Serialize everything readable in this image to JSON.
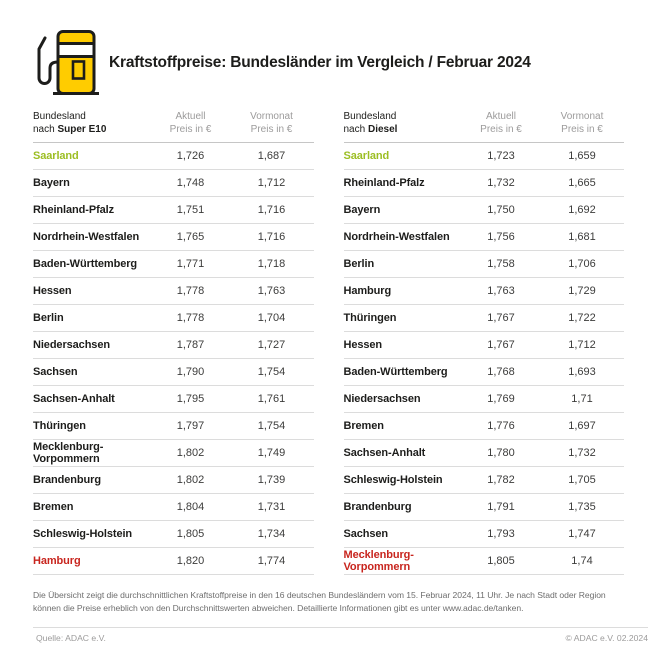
{
  "header": {
    "title": "Kraftstoffpreise: Bundesländer im Vergleich / Februar 2024",
    "icon": "fuel-pump-icon"
  },
  "colors": {
    "brand_yellow": "#FFCC00",
    "title_black": "#1D1D1B",
    "header_gray": "#9C9B9B",
    "value_gray": "#3C3C3B",
    "cheapest_green": "#9CBE23",
    "most_expensive_red": "#C8251E",
    "divider_gray": "#DCDCDC"
  },
  "chart_data": [
    {
      "type": "table",
      "fuel": "Super E10",
      "header": {
        "col1_line1": "Bundesland",
        "col1_line2_prefix": "nach ",
        "col1_line2_bold": "Super E10",
        "col2_line1": "Aktuell",
        "col2_line2": "Preis in €",
        "col3_line1": "Vormonat",
        "col3_line2": "Preis in €"
      },
      "rows": [
        {
          "state": "Saarland",
          "aktuell": "1,726",
          "vormonat": "1,687",
          "highlight": "cheapest"
        },
        {
          "state": "Bayern",
          "aktuell": "1,748",
          "vormonat": "1,712",
          "highlight": null
        },
        {
          "state": "Rheinland-Pfalz",
          "aktuell": "1,751",
          "vormonat": "1,716",
          "highlight": null
        },
        {
          "state": "Nordrhein-Westfalen",
          "aktuell": "1,765",
          "vormonat": "1,716",
          "highlight": null
        },
        {
          "state": "Baden-Württemberg",
          "aktuell": "1,771",
          "vormonat": "1,718",
          "highlight": null
        },
        {
          "state": "Hessen",
          "aktuell": "1,778",
          "vormonat": "1,763",
          "highlight": null
        },
        {
          "state": "Berlin",
          "aktuell": "1,778",
          "vormonat": "1,704",
          "highlight": null
        },
        {
          "state": "Niedersachsen",
          "aktuell": "1,787",
          "vormonat": "1,727",
          "highlight": null
        },
        {
          "state": "Sachsen",
          "aktuell": "1,790",
          "vormonat": "1,754",
          "highlight": null
        },
        {
          "state": "Sachsen-Anhalt",
          "aktuell": "1,795",
          "vormonat": "1,761",
          "highlight": null
        },
        {
          "state": "Thüringen",
          "aktuell": "1,797",
          "vormonat": "1,754",
          "highlight": null
        },
        {
          "state": "Mecklenburg-Vorpommern",
          "aktuell": "1,802",
          "vormonat": "1,749",
          "highlight": null
        },
        {
          "state": "Brandenburg",
          "aktuell": "1,802",
          "vormonat": "1,739",
          "highlight": null
        },
        {
          "state": "Bremen",
          "aktuell": "1,804",
          "vormonat": "1,731",
          "highlight": null
        },
        {
          "state": "Schleswig-Holstein",
          "aktuell": "1,805",
          "vormonat": "1,734",
          "highlight": null
        },
        {
          "state": "Hamburg",
          "aktuell": "1,820",
          "vormonat": "1,774",
          "highlight": "most-expensive"
        }
      ]
    },
    {
      "type": "table",
      "fuel": "Diesel",
      "header": {
        "col1_line1": "Bundesland",
        "col1_line2_prefix": "nach ",
        "col1_line2_bold": "Diesel",
        "col2_line1": "Aktuell",
        "col2_line2": "Preis in €",
        "col3_line1": "Vormonat",
        "col3_line2": "Preis in €"
      },
      "rows": [
        {
          "state": "Saarland",
          "aktuell": "1,723",
          "vormonat": "1,659",
          "highlight": "cheapest"
        },
        {
          "state": "Rheinland-Pfalz",
          "aktuell": "1,732",
          "vormonat": "1,665",
          "highlight": null
        },
        {
          "state": "Bayern",
          "aktuell": "1,750",
          "vormonat": "1,692",
          "highlight": null
        },
        {
          "state": "Nordrhein-Westfalen",
          "aktuell": "1,756",
          "vormonat": "1,681",
          "highlight": null
        },
        {
          "state": "Berlin",
          "aktuell": "1,758",
          "vormonat": "1,706",
          "highlight": null
        },
        {
          "state": "Hamburg",
          "aktuell": "1,763",
          "vormonat": "1,729",
          "highlight": null
        },
        {
          "state": "Thüringen",
          "aktuell": "1,767",
          "vormonat": "1,722",
          "highlight": null
        },
        {
          "state": "Hessen",
          "aktuell": "1,767",
          "vormonat": "1,712",
          "highlight": null
        },
        {
          "state": "Baden-Württemberg",
          "aktuell": "1,768",
          "vormonat": "1,693",
          "highlight": null
        },
        {
          "state": "Niedersachsen",
          "aktuell": "1,769",
          "vormonat": "1,71",
          "highlight": null
        },
        {
          "state": "Bremen",
          "aktuell": "1,776",
          "vormonat": "1,697",
          "highlight": null
        },
        {
          "state": "Sachsen-Anhalt",
          "aktuell": "1,780",
          "vormonat": "1,732",
          "highlight": null
        },
        {
          "state": "Schleswig-Holstein",
          "aktuell": "1,782",
          "vormonat": "1,705",
          "highlight": null
        },
        {
          "state": "Brandenburg",
          "aktuell": "1,791",
          "vormonat": "1,735",
          "highlight": null
        },
        {
          "state": "Sachsen",
          "aktuell": "1,793",
          "vormonat": "1,747",
          "highlight": null
        },
        {
          "state": "Mecklenburg-Vorpommern",
          "aktuell": "1,805",
          "vormonat": "1,74",
          "highlight": "most-expensive"
        }
      ]
    }
  ],
  "footnote": "Die Übersicht zeigt die durchschnittlichen Kraftstoffpreise in den 16 deutschen Bundesländern vom 15. Februar 2024, 11 Uhr. Je nach Stadt oder Region können die Preise erheblich von den Durchschnittswerten abweichen. Detaillierte Informationen gibt es unter www.adac.de/tanken.",
  "footer": {
    "source": "Quelle: ADAC e.V.",
    "copyright": "© ADAC e.V. 02.2024"
  }
}
